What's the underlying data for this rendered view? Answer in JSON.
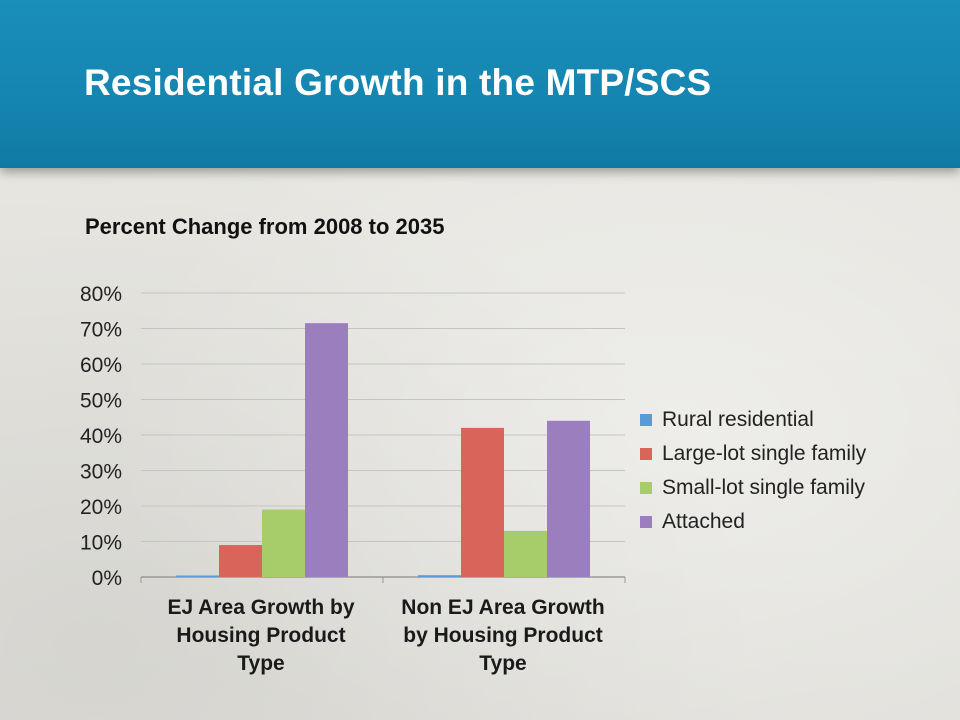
{
  "slide": {
    "title": "Residential Growth in the MTP/SCS",
    "subtitle": "Percent Change from 2008 to 2035"
  },
  "colors": {
    "header": "#1689b4",
    "rural": "#5b9bd5",
    "large_lot": "#d9645a",
    "small_lot": "#a7cd6a",
    "attached": "#9a7ebd"
  },
  "chart_data": {
    "type": "bar",
    "title": "Percent Change from 2008 to 2035",
    "categories": [
      "EJ Area Growth by Housing Product Type",
      "Non EJ Area Growth by Housing Product Type"
    ],
    "category_lines": [
      [
        "EJ Area Growth by",
        "Housing Product",
        "Type"
      ],
      [
        "Non EJ Area Growth",
        "by Housing Product",
        "Type"
      ]
    ],
    "series": [
      {
        "name": "Rural residential",
        "values": [
          0.1,
          0.5
        ],
        "color": "#5b9bd5"
      },
      {
        "name": "Large-lot single family",
        "values": [
          9,
          42
        ],
        "color": "#d9645a"
      },
      {
        "name": "Small-lot single family",
        "values": [
          19,
          13
        ],
        "color": "#a7cd6a"
      },
      {
        "name": "Attached",
        "values": [
          71.5,
          44
        ],
        "color": "#9a7ebd"
      }
    ],
    "ylim": [
      0,
      80
    ],
    "yticks": [
      0,
      10,
      20,
      30,
      40,
      50,
      60,
      70,
      80
    ],
    "ytick_labels": [
      "0%",
      "10%",
      "20%",
      "30%",
      "40%",
      "50%",
      "60%",
      "70%",
      "80%"
    ],
    "grid": true,
    "legend_position": "right"
  }
}
